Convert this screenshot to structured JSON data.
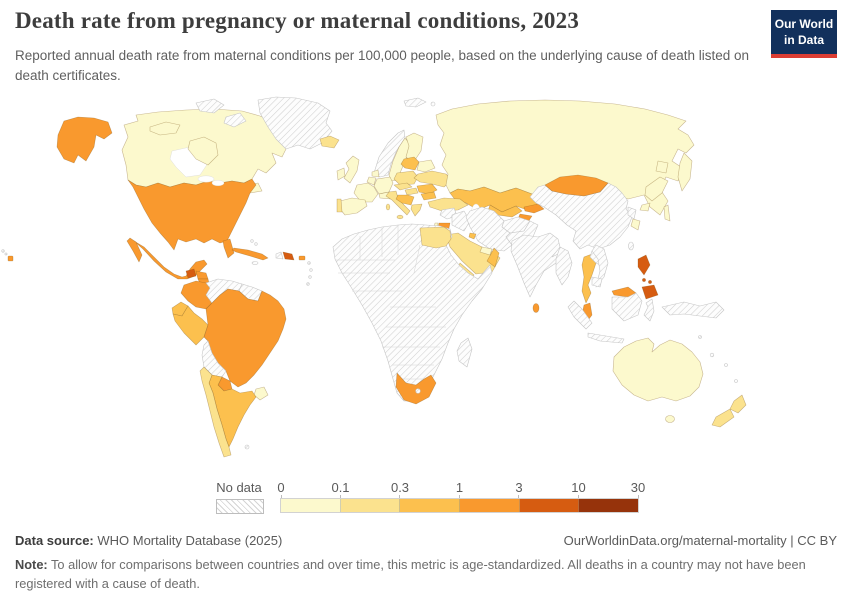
{
  "header": {
    "title": "Death rate from pregnancy or maternal conditions, 2023",
    "subtitle": "Reported annual death rate from maternal conditions per 100,000 people, based on the underlying cause of death listed on death certificates.",
    "logo": {
      "line1": "Our World",
      "line2": "in Data",
      "bg_color": "#12305c",
      "accent_color": "#dc3d33"
    }
  },
  "legend": {
    "no_data_label": "No data",
    "ticks": [
      "0",
      "0.1",
      "0.3",
      "1",
      "3",
      "10",
      "30"
    ],
    "bins": [
      {
        "range": "0–0.1",
        "color": "#fcf9cd"
      },
      {
        "range": "0.1–0.3",
        "color": "#fbe28e"
      },
      {
        "range": "0.3–1",
        "color": "#fcc04e"
      },
      {
        "range": "1–3",
        "color": "#f9992e"
      },
      {
        "range": "3–10",
        "color": "#d65c11"
      },
      {
        "range": "10–30",
        "color": "#96330b"
      }
    ],
    "no_data_pattern": {
      "stripe": "#d0d0d0",
      "bg": "#fdfdfd",
      "border": "#c6c6c6"
    }
  },
  "footer": {
    "source_label": "Data source:",
    "source_text": " WHO Mortality Database (2025)",
    "link_text": "OurWorldinData.org/maternal-mortality | CC BY",
    "note_label": "Note:",
    "note_text": " To allow for comparisons between countries and over time, this metric is age-standardized. All deaths in a country may not have been registered with a cause of death."
  },
  "chart_data": {
    "type": "choropleth_map",
    "title": "Death rate from pregnancy or maternal conditions, 2023",
    "year": "2023",
    "unit": "reported deaths from maternal conditions per 100,000 people (age-standardized)",
    "scale_ticks": [
      0,
      0.1,
      0.3,
      1,
      3,
      10,
      30
    ],
    "legend_position": "bottom",
    "no_data_style": "grey diagonal hatching",
    "countries": {
      "canada": {
        "name": "Canada",
        "range": "0–0.1",
        "bin": 0
      },
      "united-states": {
        "name": "United States",
        "range": "1–3",
        "bin": 3
      },
      "greenland": {
        "name": "Greenland",
        "range": "No data",
        "bin": null
      },
      "iceland": {
        "name": "Iceland",
        "range": "0.1–0.3",
        "bin": 1
      },
      "mexico": {
        "name": "Mexico",
        "range": "1–3",
        "bin": 3
      },
      "guatemala": {
        "name": "Guatemala",
        "range": "3–10",
        "bin": 4
      },
      "honduras": {
        "name": "Honduras",
        "range": "1–3",
        "bin": 3
      },
      "nicaragua": {
        "name": "Nicaragua",
        "range": "1–3",
        "bin": 3
      },
      "costa-rica": {
        "name": "Costa Rica",
        "range": "0.3–1",
        "bin": 2
      },
      "panama": {
        "name": "Panama",
        "range": "1–3",
        "bin": 3
      },
      "cuba": {
        "name": "Cuba",
        "range": "1–3",
        "bin": 3
      },
      "jamaica": {
        "name": "Jamaica",
        "range": "No data",
        "bin": null
      },
      "haiti": {
        "name": "Haiti",
        "range": "No data",
        "bin": null
      },
      "dominican-republic": {
        "name": "Dominican Republic",
        "range": "3–10",
        "bin": 4
      },
      "puerto-rico": {
        "name": "Puerto Rico",
        "range": "1–3",
        "bin": 3
      },
      "bahamas": {
        "name": "Bahamas",
        "range": "No data",
        "bin": null
      },
      "lesser-antilles": {
        "name": "Lesser Antilles",
        "range": "No data",
        "bin": null
      },
      "colombia": {
        "name": "Colombia",
        "range": "1–3",
        "bin": 3
      },
      "venezuela": {
        "name": "Venezuela",
        "range": "No data",
        "bin": null
      },
      "guianas": {
        "name": "Guyana, Suriname & French Guiana",
        "range": "No data",
        "bin": null
      },
      "ecuador": {
        "name": "Ecuador",
        "range": "0.3–1",
        "bin": 2
      },
      "peru": {
        "name": "Peru",
        "range": "0.3–1",
        "bin": 2
      },
      "brazil": {
        "name": "Brazil",
        "range": "1–3",
        "bin": 3
      },
      "bolivia": {
        "name": "Bolivia",
        "range": "No data",
        "bin": null
      },
      "paraguay": {
        "name": "Paraguay",
        "range": "1–3",
        "bin": 3
      },
      "uruguay": {
        "name": "Uruguay",
        "range": "0–0.1",
        "bin": 0
      },
      "argentina": {
        "name": "Argentina",
        "range": "0.3–1",
        "bin": 2
      },
      "chile": {
        "name": "Chile",
        "range": "0.1–0.3",
        "bin": 1
      },
      "falkland-islands": {
        "name": "Falkland Islands",
        "range": "No data",
        "bin": null
      },
      "united-kingdom": {
        "name": "United Kingdom",
        "range": "0–0.1",
        "bin": 0
      },
      "ireland": {
        "name": "Ireland",
        "range": "0–0.1",
        "bin": 0
      },
      "france": {
        "name": "France",
        "range": "0–0.1",
        "bin": 0
      },
      "spain": {
        "name": "Spain",
        "range": "0–0.1",
        "bin": 0
      },
      "portugal": {
        "name": "Portugal",
        "range": "0.1–0.3",
        "bin": 1
      },
      "belgium-netherlands": {
        "name": "Belgium & Netherlands",
        "range": "0–0.1",
        "bin": 0
      },
      "germany": {
        "name": "Germany",
        "range": "0–0.1",
        "bin": 0
      },
      "denmark": {
        "name": "Denmark",
        "range": "0–0.1",
        "bin": 0
      },
      "norway": {
        "name": "Norway",
        "range": "No data",
        "bin": null
      },
      "sweden": {
        "name": "Sweden",
        "range": "0–0.1",
        "bin": 0
      },
      "finland": {
        "name": "Finland",
        "range": "0–0.1",
        "bin": 0
      },
      "baltic-states": {
        "name": "Baltic states",
        "range": "0.3–1",
        "bin": 2
      },
      "belarus": {
        "name": "Belarus",
        "range": "0–0.1",
        "bin": 0
      },
      "poland": {
        "name": "Poland",
        "range": "0.1–0.3",
        "bin": 1
      },
      "czechia-slovakia": {
        "name": "Czechia & Slovakia",
        "range": "0.1–0.3",
        "bin": 1
      },
      "switzerland-austria": {
        "name": "Switzerland & Austria",
        "range": "0–0.1",
        "bin": 0
      },
      "hungary": {
        "name": "Hungary",
        "range": "0.1–0.3",
        "bin": 1
      },
      "italy": {
        "name": "Italy",
        "range": "0.1–0.3",
        "bin": 1
      },
      "balkans": {
        "name": "Western Balkans",
        "range": "0.3–1",
        "bin": 2
      },
      "greece": {
        "name": "Greece",
        "range": "0.1–0.3",
        "bin": 1
      },
      "romania": {
        "name": "Romania",
        "range": "0.3–1",
        "bin": 2
      },
      "bulgaria": {
        "name": "Bulgaria",
        "range": "0.3–1",
        "bin": 2
      },
      "ukraine": {
        "name": "Ukraine",
        "range": "0.1–0.3",
        "bin": 1
      },
      "russia": {
        "name": "Russia",
        "range": "0–0.1",
        "bin": 0
      },
      "georgia": {
        "name": "Georgia",
        "range": "0.1–0.3",
        "bin": 1
      },
      "armenia": {
        "name": "Armenia",
        "range": "0.3–1",
        "bin": 2
      },
      "azerbaijan": {
        "name": "Azerbaijan",
        "range": "0.3–1",
        "bin": 2
      },
      "turkey": {
        "name": "Turkey",
        "range": "0.1–0.3",
        "bin": 1
      },
      "kazakhstan": {
        "name": "Kazakhstan",
        "range": "0.3–1",
        "bin": 2
      },
      "uzbekistan": {
        "name": "Uzbekistan",
        "range": "0.3–1",
        "bin": 2
      },
      "turkmenistan": {
        "name": "Turkmenistan",
        "range": "No data",
        "bin": null
      },
      "kyrgyzstan": {
        "name": "Kyrgyzstan",
        "range": "1–3",
        "bin": 3
      },
      "tajikistan": {
        "name": "Tajikistan",
        "range": "1–3",
        "bin": 3
      },
      "afghanistan": {
        "name": "Afghanistan",
        "range": "No data",
        "bin": null
      },
      "pakistan": {
        "name": "Pakistan",
        "range": "No data",
        "bin": null
      },
      "iran": {
        "name": "Iran",
        "range": "No data",
        "bin": null
      },
      "iraq": {
        "name": "Iraq",
        "range": "No data",
        "bin": null
      },
      "syria": {
        "name": "Syria",
        "range": "No data",
        "bin": null
      },
      "israel": {
        "name": "Israel",
        "range": "0–0.1",
        "bin": 0
      },
      "jordan": {
        "name": "Jordan",
        "range": "1–3",
        "bin": 3
      },
      "saudi-arabia": {
        "name": "Saudi Arabia",
        "range": "0.1–0.3",
        "bin": 1
      },
      "yemen": {
        "name": "Yemen",
        "range": "0.1–0.3",
        "bin": 1
      },
      "oman": {
        "name": "Oman",
        "range": "0.3–1",
        "bin": 2
      },
      "united-arab-emirates": {
        "name": "United Arab Emirates",
        "range": "0–0.1",
        "bin": 0
      },
      "kuwait": {
        "name": "Kuwait",
        "range": "0.3–1",
        "bin": 2
      },
      "egypt": {
        "name": "Egypt",
        "range": "0.1–0.3",
        "bin": 1
      },
      "south-africa": {
        "name": "South Africa",
        "range": "1–3",
        "bin": 3
      },
      "africa-other": {
        "name": "Africa (other countries)",
        "range": "No data",
        "bin": null
      },
      "madagascar": {
        "name": "Madagascar",
        "range": "No data",
        "bin": null
      },
      "lesotho": {
        "name": "Lesotho",
        "range": "No data",
        "bin": null
      },
      "china": {
        "name": "China",
        "range": "No data",
        "bin": null
      },
      "mongolia": {
        "name": "Mongolia",
        "range": "1–3",
        "bin": 3
      },
      "india": {
        "name": "India",
        "range": "No data",
        "bin": null
      },
      "sri-lanka": {
        "name": "Sri Lanka",
        "range": "1–3",
        "bin": 3
      },
      "myanmar": {
        "name": "Myanmar",
        "range": "No data",
        "bin": null
      },
      "thailand": {
        "name": "Thailand",
        "range": "0.3–1",
        "bin": 2
      },
      "laos": {
        "name": "Laos",
        "range": "No data",
        "bin": null
      },
      "vietnam": {
        "name": "Vietnam",
        "range": "No data",
        "bin": null
      },
      "cambodia": {
        "name": "Cambodia",
        "range": "No data",
        "bin": null
      },
      "malaysia": {
        "name": "Malaysia",
        "range": "1–3",
        "bin": 3
      },
      "indonesia": {
        "name": "Indonesia",
        "range": "No data",
        "bin": null
      },
      "philippines": {
        "name": "Philippines",
        "range": "3–10",
        "bin": 4
      },
      "taiwan": {
        "name": "Taiwan",
        "range": "No data",
        "bin": null
      },
      "north-korea": {
        "name": "North Korea",
        "range": "No data",
        "bin": null
      },
      "south-korea": {
        "name": "South Korea",
        "range": "0–0.1",
        "bin": 0
      },
      "japan": {
        "name": "Japan",
        "range": "0–0.1",
        "bin": 0
      },
      "new-guinea": {
        "name": "New Guinea",
        "range": "No data",
        "bin": null
      },
      "australia": {
        "name": "Australia",
        "range": "0–0.1",
        "bin": 0
      },
      "new-zealand": {
        "name": "New Zealand",
        "range": "0.1–0.3",
        "bin": 1
      },
      "pacific-islands": {
        "name": "Pacific islands",
        "range": "No data",
        "bin": null
      },
      "svalbard": {
        "name": "Svalbard",
        "range": "No data",
        "bin": null
      },
      "arctic-islands": {
        "name": "Arctic islands",
        "range": "No data",
        "bin": null
      }
    }
  }
}
